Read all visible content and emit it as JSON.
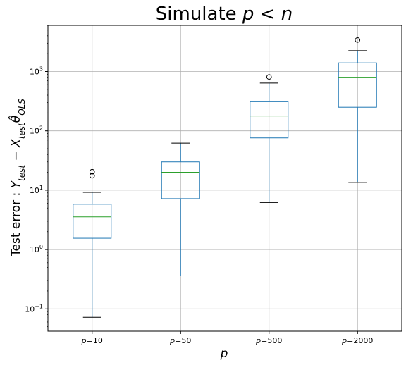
{
  "chart_data": {
    "type": "box",
    "title": "Simulate p < n",
    "title_parts": {
      "prefix": "Simulate ",
      "math": "p < n"
    },
    "xlabel": "p",
    "ylabel": "Test error : Y_test − X_test θ̂_OLS",
    "ylabel_parts": {
      "prefix": "Test error : ",
      "y": "Y",
      "y_sub": "test",
      "minus": " − ",
      "x": "X",
      "x_sub": "test",
      "theta": "θ̂",
      "theta_sub": "OLS"
    },
    "yscale": "log",
    "ylim": [
      0.042,
      6000
    ],
    "yticks": [
      {
        "value": 0.1,
        "base": "10",
        "exp": "−1"
      },
      {
        "value": 1,
        "base": "10",
        "exp": "0"
      },
      {
        "value": 10,
        "base": "10",
        "exp": "1"
      },
      {
        "value": 100,
        "base": "10",
        "exp": "2"
      },
      {
        "value": 1000,
        "base": "10",
        "exp": "3"
      }
    ],
    "grid": true,
    "colors": {
      "box": "#1f77b4",
      "median": "#2ca02c",
      "whisker_cap": "#000000",
      "grid": "#b0b0b0"
    },
    "categories": [
      {
        "label_var": "p",
        "label_val": "=10"
      },
      {
        "label_var": "p",
        "label_val": "=50"
      },
      {
        "label_var": "p",
        "label_val": "=500"
      },
      {
        "label_var": "p",
        "label_val": "=2000"
      }
    ],
    "boxes": [
      {
        "whislo": 0.072,
        "q1": 1.55,
        "med": 3.55,
        "q3": 5.8,
        "whishi": 9.2,
        "fliers": [
          17.5,
          20.5
        ]
      },
      {
        "whislo": 0.36,
        "q1": 7.2,
        "med": 20.0,
        "q3": 30.0,
        "whishi": 62.0,
        "fliers": []
      },
      {
        "whislo": 6.2,
        "q1": 76.0,
        "med": 178.0,
        "q3": 310.0,
        "whishi": 640.0,
        "fliers": [
          810.0
        ]
      },
      {
        "whislo": 13.5,
        "q1": 250.0,
        "med": 800.0,
        "q3": 1400.0,
        "whishi": 2250.0,
        "fliers": [
          3400.0
        ]
      }
    ]
  }
}
